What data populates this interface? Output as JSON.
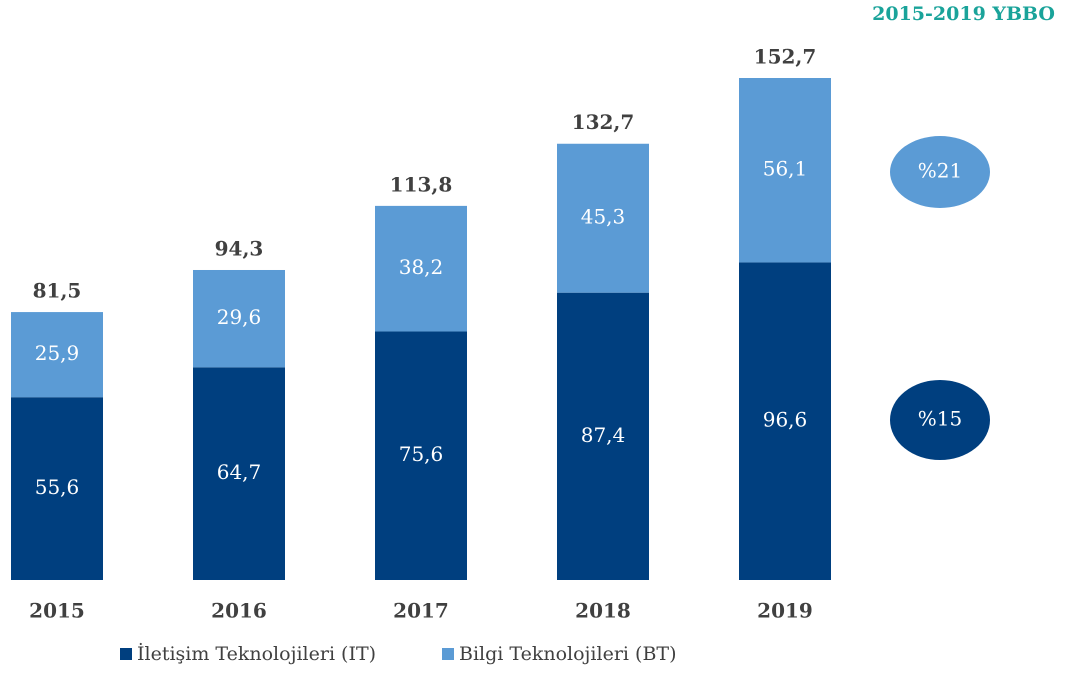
{
  "chart_data": {
    "type": "stacked_bar",
    "title": "2015-2019 YBBO",
    "categories": [
      "2015",
      "2016",
      "2017",
      "2018",
      "2019"
    ],
    "series": [
      {
        "name": "İletişim Teknolojileri (IT)",
        "color": "#003f7f",
        "values": [
          55.6,
          64.7,
          75.6,
          87.4,
          96.6
        ],
        "value_labels": [
          "55,6",
          "64,7",
          "75,6",
          "87,4",
          "96,6"
        ],
        "growth_label": "%15"
      },
      {
        "name": "Bilgi Teknolojileri (BT)",
        "color": "#5b9bd5",
        "values": [
          25.9,
          29.6,
          38.2,
          45.3,
          56.1
        ],
        "value_labels": [
          "25,9",
          "29,6",
          "38,2",
          "45,3",
          "56,1"
        ],
        "growth_label": "%21"
      }
    ],
    "totals": [
      81.5,
      94.3,
      113.8,
      132.7,
      152.7
    ],
    "total_labels": [
      "81,5",
      "94,3",
      "113,8",
      "132,7",
      "152,7"
    ],
    "legend": "bottom"
  }
}
